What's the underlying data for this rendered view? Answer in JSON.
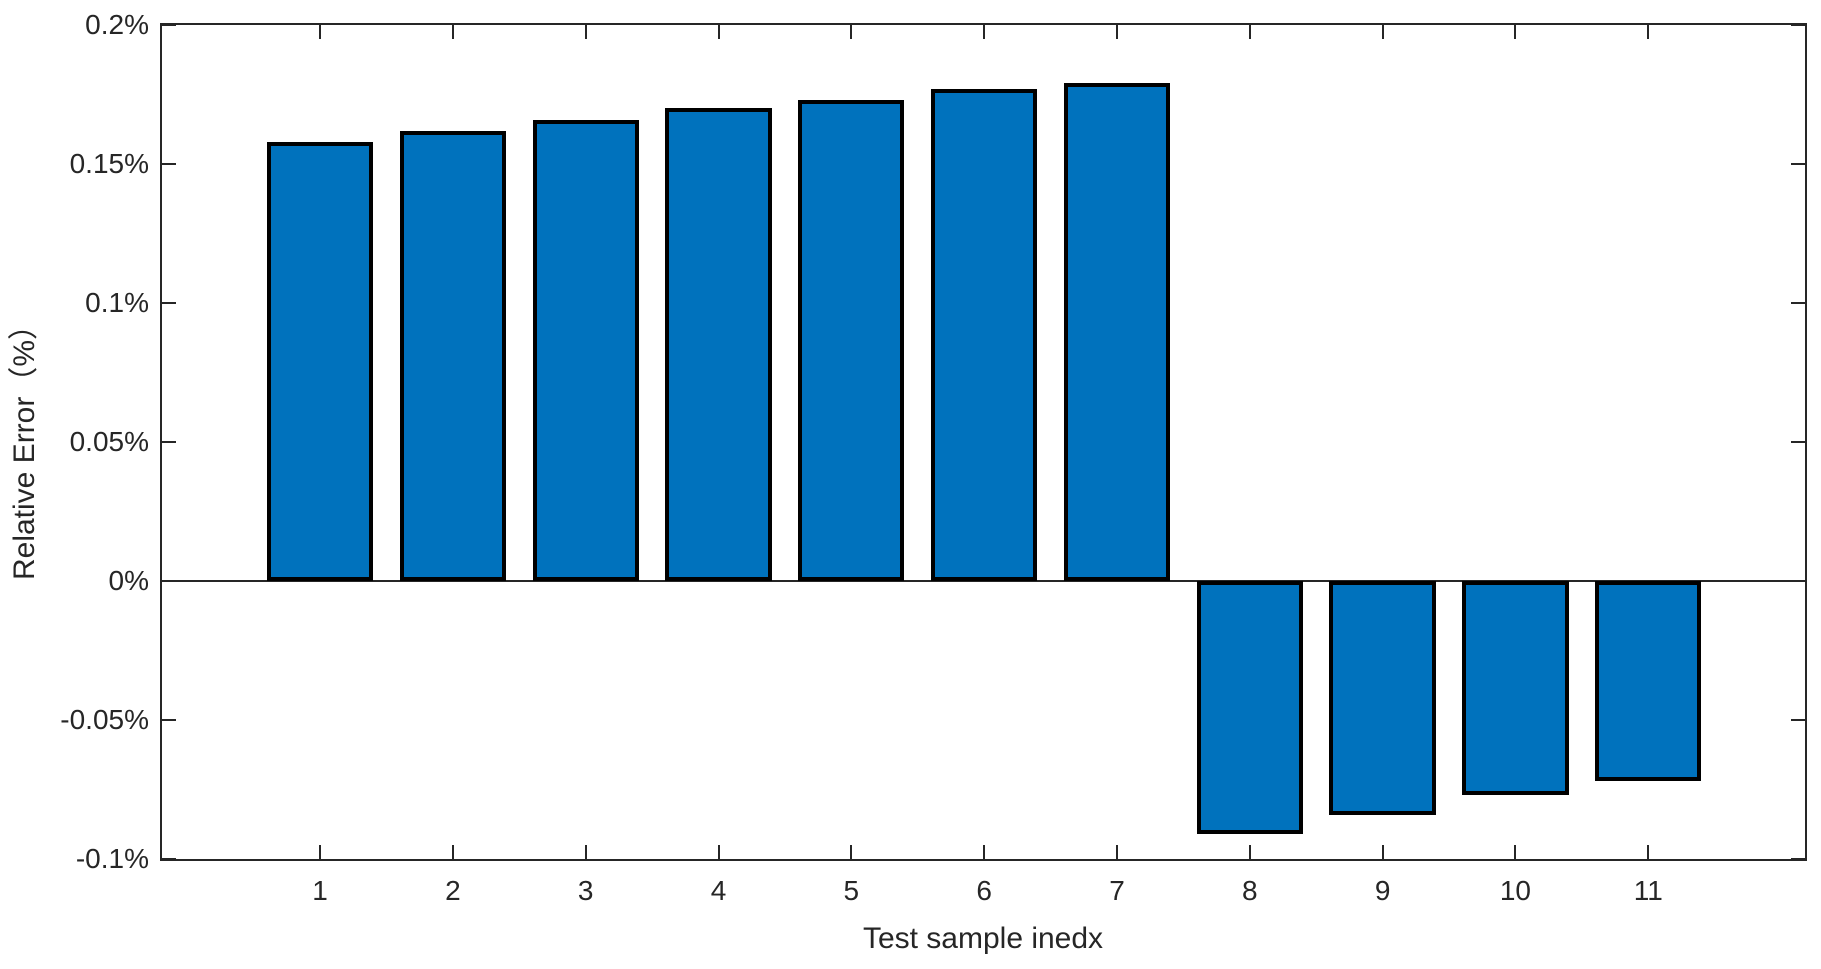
{
  "chart_data": {
    "type": "bar",
    "title": "",
    "xlabel": "Test sample inedx",
    "ylabel": "Relative Error（%）",
    "categories": [
      "1",
      "2",
      "3",
      "4",
      "5",
      "6",
      "7",
      "8",
      "9",
      "10",
      "11"
    ],
    "x": [
      1,
      2,
      3,
      4,
      5,
      6,
      7,
      8,
      9,
      10,
      11
    ],
    "values": [
      0.158,
      0.162,
      0.166,
      0.17,
      0.173,
      0.177,
      0.179,
      -0.091,
      -0.084,
      -0.077,
      -0.072
    ],
    "value_unit": "%",
    "ylim": [
      -0.1,
      0.2
    ],
    "xlim": [
      -0.19,
      12.18
    ],
    "yticks": [
      {
        "value": 0.2,
        "label": "0.2%"
      },
      {
        "value": 0.15,
        "label": "0.15%"
      },
      {
        "value": 0.1,
        "label": "0.1%"
      },
      {
        "value": 0.05,
        "label": "0.05%"
      },
      {
        "value": 0,
        "label": "0%"
      },
      {
        "value": -0.05,
        "label": "-0.05%"
      },
      {
        "value": -0.1,
        "label": "-0.1%"
      }
    ],
    "xticks": [
      {
        "value": 1,
        "label": "1"
      },
      {
        "value": 2,
        "label": "2"
      },
      {
        "value": 3,
        "label": "3"
      },
      {
        "value": 4,
        "label": "4"
      },
      {
        "value": 5,
        "label": "5"
      },
      {
        "value": 6,
        "label": "6"
      },
      {
        "value": 7,
        "label": "7"
      },
      {
        "value": 8,
        "label": "8"
      },
      {
        "value": 9,
        "label": "9"
      },
      {
        "value": 10,
        "label": "10"
      },
      {
        "value": 11,
        "label": "11"
      }
    ],
    "baseline": 0,
    "bar_width_ratio": 0.8,
    "grid": false,
    "legend_position": "none",
    "colors": {
      "bar_fill": "#0072BD",
      "bar_edge": "#000000",
      "axis": "#262626",
      "text": "#262626",
      "background": "#ffffff"
    }
  }
}
